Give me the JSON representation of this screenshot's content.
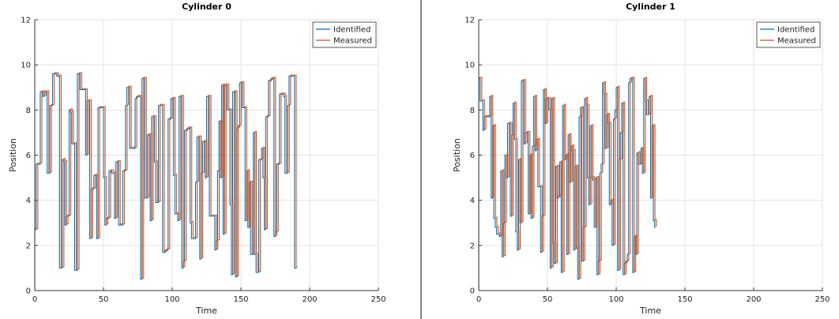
{
  "chart_data": [
    {
      "type": "line",
      "title": "Cylinder 0",
      "xlabel": "Time",
      "ylabel": "Position",
      "xlim": [
        0,
        250
      ],
      "ylim": [
        0,
        12
      ],
      "xticks": [
        "0",
        "50",
        "100",
        "150",
        "200",
        "250"
      ],
      "yticks": [
        "0",
        "2",
        "4",
        "6",
        "8",
        "10",
        "12"
      ],
      "grid": true,
      "legend_position": "top-right",
      "series": [
        {
          "name": "Identified",
          "color": "#0072BD"
        },
        {
          "name": "Measured",
          "color": "#D95319"
        }
      ],
      "levels": [
        [
          0,
          2.7
        ],
        [
          1,
          5.6
        ],
        [
          3,
          5.6
        ],
        [
          4,
          8.8
        ],
        [
          6,
          8.6
        ],
        [
          7,
          8.8
        ],
        [
          9,
          5.2
        ],
        [
          10,
          5.2
        ],
        [
          11,
          8.2
        ],
        [
          13,
          9.6
        ],
        [
          16,
          9.5
        ],
        [
          18,
          1.0
        ],
        [
          19,
          1.0
        ],
        [
          20,
          5.8
        ],
        [
          21,
          5.7
        ],
        [
          22,
          2.9
        ],
        [
          23,
          3.3
        ],
        [
          25,
          8.0
        ],
        [
          26,
          7.9
        ],
        [
          27,
          6.5
        ],
        [
          29,
          0.9
        ],
        [
          31,
          9.6
        ],
        [
          33,
          8.9
        ],
        [
          37,
          6.0
        ],
        [
          38,
          8.4
        ],
        [
          40,
          2.3
        ],
        [
          41,
          4.5
        ],
        [
          43,
          5.1
        ],
        [
          45,
          2.3
        ],
        [
          46,
          8.1
        ],
        [
          48,
          8.1
        ],
        [
          50,
          5.0
        ],
        [
          51,
          2.9
        ],
        [
          52,
          3.2
        ],
        [
          54,
          5.3
        ],
        [
          56,
          5.2
        ],
        [
          58,
          3.2
        ],
        [
          59,
          5.7
        ],
        [
          61,
          2.9
        ],
        [
          64,
          5.3
        ],
        [
          66,
          8.2
        ],
        [
          67,
          9.0
        ],
        [
          69,
          6.3
        ],
        [
          73,
          8.5
        ],
        [
          74,
          8.6
        ],
        [
          77,
          0.5
        ],
        [
          78,
          9.4
        ],
        [
          80,
          4.1
        ],
        [
          82,
          6.9
        ],
        [
          84,
          3.1
        ],
        [
          85,
          7.7
        ],
        [
          87,
          5.7
        ],
        [
          88,
          3.9
        ],
        [
          90,
          8.2
        ],
        [
          93,
          1.7
        ],
        [
          95,
          1.8
        ],
        [
          97,
          7.6
        ],
        [
          99,
          8.5
        ],
        [
          101,
          5.1
        ],
        [
          102,
          3.4
        ],
        [
          104,
          3.1
        ],
        [
          105,
          8.6
        ],
        [
          107,
          1.0
        ],
        [
          108,
          1.3
        ],
        [
          109,
          7.1
        ],
        [
          111,
          7.2
        ],
        [
          113,
          3.0
        ],
        [
          114,
          2.3
        ],
        [
          117,
          4.8
        ],
        [
          118,
          6.8
        ],
        [
          120,
          1.4
        ],
        [
          121,
          5.2
        ],
        [
          122,
          6.6
        ],
        [
          124,
          5.0
        ],
        [
          125,
          8.6
        ],
        [
          127,
          3.3
        ],
        [
          129,
          3.3
        ],
        [
          131,
          1.8
        ],
        [
          132,
          2.2
        ],
        [
          133,
          5.3
        ],
        [
          134,
          7.5
        ],
        [
          135,
          5.0
        ],
        [
          136,
          9.1
        ],
        [
          137,
          2.5
        ],
        [
          138,
          9.1
        ],
        [
          140,
          8.0
        ],
        [
          142,
          3.8
        ],
        [
          143,
          0.7
        ],
        [
          144,
          8.8
        ],
        [
          146,
          0.6
        ],
        [
          147,
          7.2
        ],
        [
          148,
          7.3
        ],
        [
          149,
          9.2
        ],
        [
          151,
          8.1
        ],
        [
          153,
          3.1
        ],
        [
          154,
          5.3
        ],
        [
          155,
          2.8
        ],
        [
          156,
          4.8
        ],
        [
          157,
          1.6
        ],
        [
          159,
          7.0
        ],
        [
          160,
          1.6
        ],
        [
          161,
          0.8
        ],
        [
          163,
          5.8
        ],
        [
          165,
          6.3
        ],
        [
          166,
          5.0
        ],
        [
          167,
          2.7
        ],
        [
          168,
          7.7
        ],
        [
          170,
          9.3
        ],
        [
          172,
          9.4
        ],
        [
          174,
          2.4
        ],
        [
          175,
          2.6
        ],
        [
          176,
          5.6
        ],
        [
          178,
          8.7
        ],
        [
          181,
          8.6
        ],
        [
          182,
          5.2
        ],
        [
          184,
          8.2
        ],
        [
          185,
          9.5
        ],
        [
          189,
          1.0
        ],
        [
          190,
          1.0
        ]
      ]
    },
    {
      "type": "line",
      "title": "Cylinder 1",
      "xlabel": "Time",
      "ylabel": "Position",
      "xlim": [
        0,
        250
      ],
      "ylim": [
        0,
        12
      ],
      "xticks": [
        "0",
        "50",
        "100",
        "150",
        "200",
        "250"
      ],
      "yticks": [
        "0",
        "2",
        "4",
        "6",
        "8",
        "10",
        "12"
      ],
      "grid": true,
      "legend_position": "top-right",
      "series": [
        {
          "name": "Identified",
          "color": "#0072BD"
        },
        {
          "name": "Measured",
          "color": "#D95319"
        }
      ],
      "levels": [
        [
          0,
          9.4
        ],
        [
          1,
          8.4
        ],
        [
          3,
          7.1
        ],
        [
          4,
          7.7
        ],
        [
          6,
          7.7
        ],
        [
          8,
          8.6
        ],
        [
          9,
          4.1
        ],
        [
          10,
          7.3
        ],
        [
          11,
          3.2
        ],
        [
          12,
          2.8
        ],
        [
          13,
          2.5
        ],
        [
          15,
          2.4
        ],
        [
          16,
          5.3
        ],
        [
          17,
          1.5
        ],
        [
          18,
          3.0
        ],
        [
          19,
          6.0
        ],
        [
          20,
          5.0
        ],
        [
          21,
          7.4
        ],
        [
          23,
          3.3
        ],
        [
          24,
          6.9
        ],
        [
          25,
          8.3
        ],
        [
          26,
          6.7
        ],
        [
          27,
          2.6
        ],
        [
          28,
          1.8
        ],
        [
          29,
          5.8
        ],
        [
          30,
          3.0
        ],
        [
          31,
          9.3
        ],
        [
          33,
          6.5
        ],
        [
          34,
          7.0
        ],
        [
          36,
          3.4
        ],
        [
          37,
          6.0
        ],
        [
          38,
          3.2
        ],
        [
          39,
          6.4
        ],
        [
          40,
          8.6
        ],
        [
          41,
          6.2
        ],
        [
          42,
          6.7
        ],
        [
          43,
          4.6
        ],
        [
          45,
          1.7
        ],
        [
          46,
          3.3
        ],
        [
          47,
          8.9
        ],
        [
          48,
          7.4
        ],
        [
          49,
          8.5
        ],
        [
          51,
          8.0
        ],
        [
          52,
          1.0
        ],
        [
          53,
          8.5
        ],
        [
          54,
          2.1
        ],
        [
          55,
          1.2
        ],
        [
          56,
          5.5
        ],
        [
          57,
          4.1
        ],
        [
          58,
          4.2
        ],
        [
          59,
          5.7
        ],
        [
          60,
          0.8
        ],
        [
          61,
          8.2
        ],
        [
          62,
          5.8
        ],
        [
          63,
          6.0
        ],
        [
          64,
          1.6
        ],
        [
          65,
          6.9
        ],
        [
          66,
          4.8
        ],
        [
          67,
          6.4
        ],
        [
          68,
          6.2
        ],
        [
          69,
          1.8
        ],
        [
          70,
          5.5
        ],
        [
          71,
          1.9
        ],
        [
          72,
          0.5
        ],
        [
          73,
          7.7
        ],
        [
          74,
          8.1
        ],
        [
          75,
          1.3
        ],
        [
          76,
          2.8
        ],
        [
          77,
          8.5
        ],
        [
          78,
          8.2
        ],
        [
          79,
          5.0
        ],
        [
          80,
          3.8
        ],
        [
          81,
          7.3
        ],
        [
          82,
          5.0
        ],
        [
          83,
          4.9
        ],
        [
          84,
          2.8
        ],
        [
          85,
          5.0
        ],
        [
          86,
          0.7
        ],
        [
          87,
          1.3
        ],
        [
          88,
          5.2
        ],
        [
          89,
          5.6
        ],
        [
          90,
          9.2
        ],
        [
          91,
          8.7
        ],
        [
          92,
          6.3
        ],
        [
          93,
          7.8
        ],
        [
          94,
          7.4
        ],
        [
          95,
          3.8
        ],
        [
          96,
          4.0
        ],
        [
          97,
          2.0
        ],
        [
          98,
          7.6
        ],
        [
          99,
          8.0
        ],
        [
          100,
          9.0
        ],
        [
          101,
          0.9
        ],
        [
          102,
          5.8
        ],
        [
          103,
          7.0
        ],
        [
          104,
          8.3
        ],
        [
          105,
          0.7
        ],
        [
          106,
          1.2
        ],
        [
          107,
          1.3
        ],
        [
          108,
          1.6
        ],
        [
          109,
          9.2
        ],
        [
          110,
          9.4
        ],
        [
          112,
          0.8
        ],
        [
          113,
          2.4
        ],
        [
          114,
          1.6
        ],
        [
          115,
          6.1
        ],
        [
          116,
          5.6
        ],
        [
          117,
          5.6
        ],
        [
          118,
          6.3
        ],
        [
          119,
          5.2
        ],
        [
          120,
          9.4
        ],
        [
          121,
          8.4
        ],
        [
          122,
          7.8
        ],
        [
          123,
          7.8
        ],
        [
          124,
          8.6
        ],
        [
          125,
          4.1
        ],
        [
          126,
          7.3
        ],
        [
          127,
          3.1
        ],
        [
          128,
          2.8
        ]
      ]
    }
  ]
}
